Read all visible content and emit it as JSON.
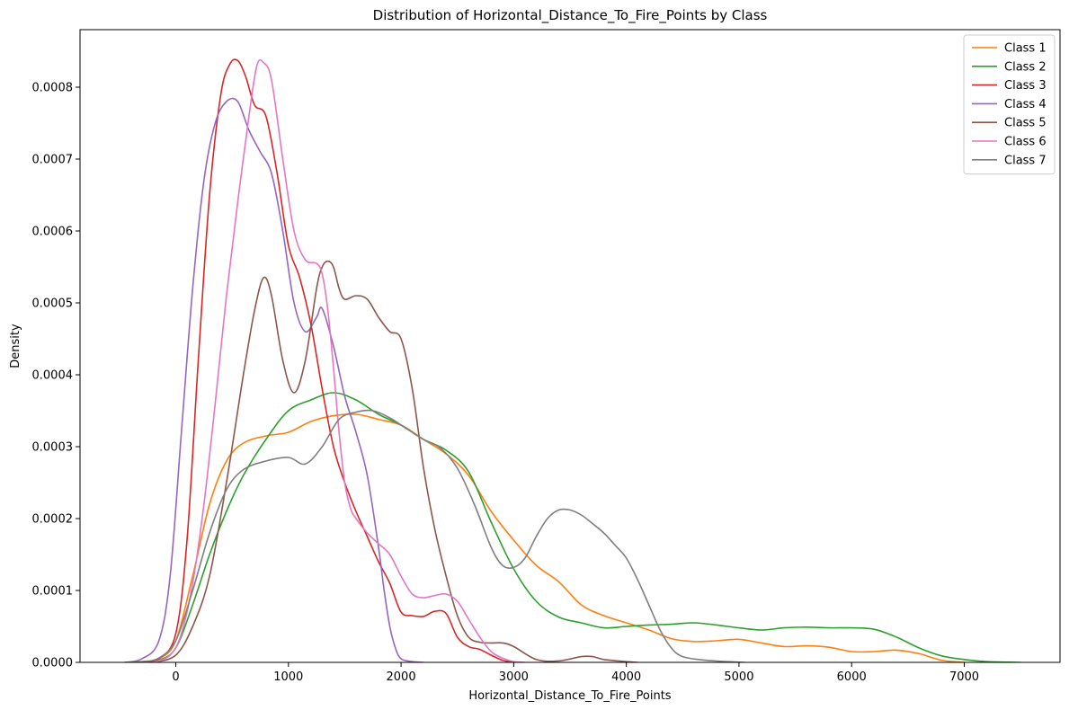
{
  "chart_data": {
    "type": "line",
    "title": "Distribution of Horizontal_Distance_To_Fire_Points by Class",
    "xlabel": "Horizontal_Distance_To_Fire_Points",
    "ylabel": "Density",
    "xlim": [
      -850,
      7850
    ],
    "ylim": [
      0,
      0.00088
    ],
    "xticks": [
      0,
      1000,
      2000,
      3000,
      4000,
      5000,
      6000,
      7000
    ],
    "xtick_labels": [
      "0",
      "1000",
      "2000",
      "3000",
      "4000",
      "5000",
      "6000",
      "7000"
    ],
    "yticks": [
      0,
      0.0001,
      0.0002,
      0.0003,
      0.0004,
      0.0005,
      0.0006,
      0.0007,
      0.0008
    ],
    "ytick_labels": [
      "0.0000",
      "0.0001",
      "0.0002",
      "0.0003",
      "0.0004",
      "0.0005",
      "0.0006",
      "0.0007",
      "0.0008"
    ],
    "grid": false,
    "legend_position": "top-right",
    "series": [
      {
        "name": "Class 1",
        "color": "#ff7f0e",
        "x": [
          -450,
          -300,
          -150,
          0,
          150,
          300,
          450,
          600,
          800,
          1000,
          1200,
          1400,
          1600,
          1800,
          2000,
          2200,
          2400,
          2600,
          2800,
          3000,
          3200,
          3400,
          3600,
          3800,
          4000,
          4200,
          4400,
          4600,
          4800,
          5000,
          5200,
          5400,
          5600,
          5800,
          6000,
          6200,
          6400,
          6600,
          6800,
          7000
        ],
        "y": [
          0,
          1e-06,
          5e-06,
          3e-05,
          0.00012,
          0.00022,
          0.00028,
          0.000305,
          0.000315,
          0.00032,
          0.000335,
          0.000343,
          0.000345,
          0.000338,
          0.00033,
          0.00031,
          0.00029,
          0.00026,
          0.00021,
          0.00017,
          0.000135,
          0.000112,
          8e-05,
          6.5e-05,
          5.5e-05,
          4.5e-05,
          3.3e-05,
          2.9e-05,
          3e-05,
          3.2e-05,
          2.7e-05,
          2.2e-05,
          2.3e-05,
          2.1e-05,
          1.5e-05,
          1.5e-05,
          1.7e-05,
          1.2e-05,
          3e-06,
          0
        ]
      },
      {
        "name": "Class 2",
        "color": "#2ca02c",
        "x": [
          -300,
          -150,
          0,
          150,
          300,
          450,
          600,
          800,
          1000,
          1200,
          1400,
          1600,
          1800,
          2000,
          2200,
          2400,
          2600,
          2800,
          3000,
          3200,
          3400,
          3600,
          3800,
          4000,
          4200,
          4400,
          4600,
          4800,
          5000,
          5200,
          5400,
          5600,
          5800,
          6000,
          6200,
          6400,
          6600,
          6800,
          7000,
          7200,
          7500
        ],
        "y": [
          0,
          3e-06,
          2e-05,
          8e-05,
          0.00015,
          0.00021,
          0.00026,
          0.00031,
          0.00035,
          0.000365,
          0.000375,
          0.000365,
          0.000345,
          0.00033,
          0.00031,
          0.000295,
          0.000265,
          0.000195,
          0.00013,
          8.5e-05,
          6.3e-05,
          5.5e-05,
          4.8e-05,
          5e-05,
          5.2e-05,
          5.3e-05,
          5.5e-05,
          5.2e-05,
          4.8e-05,
          4.5e-05,
          4.8e-05,
          4.9e-05,
          4.8e-05,
          4.8e-05,
          4.6e-05,
          3.5e-05,
          2e-05,
          9e-06,
          4e-06,
          1e-06,
          0
        ]
      },
      {
        "name": "Class 3",
        "color": "#d62728",
        "x": [
          -300,
          -150,
          0,
          100,
          200,
          300,
          400,
          480,
          550,
          620,
          700,
          800,
          900,
          1000,
          1100,
          1200,
          1300,
          1400,
          1500,
          1600,
          1700,
          1800,
          1900,
          2000,
          2100,
          2200,
          2300,
          2400,
          2500,
          2600,
          2700,
          2800,
          2900,
          3000
        ],
        "y": [
          0,
          5e-06,
          4e-05,
          0.00017,
          0.00042,
          0.00065,
          0.00079,
          0.000832,
          0.000837,
          0.000815,
          0.000775,
          0.00076,
          0.00068,
          0.00058,
          0.000535,
          0.00047,
          0.00038,
          0.0003,
          0.00025,
          0.00021,
          0.000175,
          0.00014,
          0.00011,
          7e-05,
          6.5e-05,
          6.4e-05,
          7.1e-05,
          6.8e-05,
          3.5e-05,
          2.2e-05,
          1.8e-05,
          1e-05,
          3e-06,
          0
        ]
      },
      {
        "name": "Class 4",
        "color": "#9467bd",
        "x": [
          -450,
          -300,
          -150,
          -50,
          50,
          150,
          250,
          350,
          450,
          550,
          650,
          750,
          850,
          950,
          1050,
          1150,
          1250,
          1300,
          1400,
          1500,
          1600,
          1700,
          1800,
          1850,
          1900,
          1950,
          2000,
          2100,
          2200
        ],
        "y": [
          0,
          5e-06,
          3e-05,
          0.00012,
          0.00032,
          0.00052,
          0.00067,
          0.00075,
          0.00078,
          0.00078,
          0.00074,
          0.00071,
          0.00068,
          0.0006,
          0.0005,
          0.00046,
          0.00048,
          0.000492,
          0.00044,
          0.00037,
          0.00032,
          0.00026,
          0.00016,
          0.0001,
          5e-05,
          2e-05,
          5e-06,
          1e-06,
          0
        ]
      },
      {
        "name": "Class 5",
        "color": "#8c564b",
        "x": [
          -200,
          0,
          150,
          300,
          450,
          600,
          700,
          780,
          850,
          950,
          1050,
          1150,
          1250,
          1300,
          1350,
          1400,
          1450,
          1500,
          1600,
          1700,
          1800,
          1900,
          2000,
          2100,
          2200,
          2300,
          2400,
          2500,
          2600,
          2700,
          2800,
          2900,
          3000,
          3200,
          3400,
          3600,
          3700,
          3800,
          4000,
          4100
        ],
        "y": [
          0,
          1e-05,
          5e-05,
          0.00012,
          0.00025,
          0.0004,
          0.00049,
          0.000535,
          0.00051,
          0.00042,
          0.000375,
          0.00042,
          0.00052,
          0.00055,
          0.000558,
          0.00055,
          0.00052,
          0.000505,
          0.00051,
          0.000505,
          0.00048,
          0.00046,
          0.00045,
          0.00038,
          0.00027,
          0.000185,
          0.00012,
          6.5e-05,
          3.5e-05,
          2.8e-05,
          2.7e-05,
          2.7e-05,
          2.2e-05,
          4e-06,
          2e-06,
          8e-06,
          8e-06,
          4e-06,
          1e-06,
          0
        ]
      },
      {
        "name": "Class 6",
        "color": "#e377c2",
        "x": [
          -200,
          -50,
          50,
          150,
          250,
          350,
          450,
          550,
          650,
          720,
          780,
          850,
          950,
          1050,
          1150,
          1250,
          1300,
          1350,
          1400,
          1450,
          1500,
          1550,
          1600,
          1700,
          1800,
          1900,
          2000,
          2100,
          2200,
          2300,
          2400,
          2500,
          2600,
          2700,
          2800,
          2900,
          3000,
          3100
        ],
        "y": [
          0,
          1e-05,
          4e-05,
          0.00011,
          0.00022,
          0.00036,
          0.00051,
          0.00064,
          0.00076,
          0.00083,
          0.000834,
          0.00081,
          0.0007,
          0.0006,
          0.00056,
          0.000555,
          0.00054,
          0.00049,
          0.00041,
          0.00032,
          0.00025,
          0.000215,
          0.0002,
          0.00018,
          0.000165,
          0.00015,
          0.00012,
          9.5e-05,
          9e-05,
          9.3e-05,
          9.5e-05,
          8.5e-05,
          6e-05,
          3.5e-05,
          1.5e-05,
          6e-06,
          1e-06,
          0
        ]
      },
      {
        "name": "Class 7",
        "color": "#7f7f7f",
        "x": [
          -450,
          -300,
          -150,
          0,
          150,
          300,
          450,
          600,
          800,
          1000,
          1150,
          1300,
          1450,
          1600,
          1750,
          1900,
          2050,
          2200,
          2350,
          2500,
          2650,
          2800,
          2900,
          3000,
          3100,
          3200,
          3300,
          3400,
          3500,
          3600,
          3700,
          3800,
          3900,
          4000,
          4100,
          4200,
          4300,
          4400,
          4500,
          4700,
          4900,
          5050
        ],
        "y": [
          0,
          1e-06,
          6e-06,
          3e-05,
          0.0001,
          0.00018,
          0.00024,
          0.000268,
          0.00028,
          0.000285,
          0.000276,
          0.0003,
          0.000338,
          0.000348,
          0.00035,
          0.00034,
          0.000325,
          0.00031,
          0.000298,
          0.00027,
          0.00022,
          0.00016,
          0.000135,
          0.000132,
          0.000145,
          0.000175,
          0.0002,
          0.000212,
          0.000212,
          0.000205,
          0.000193,
          0.00018,
          0.000163,
          0.000145,
          0.000115,
          8e-05,
          4.5e-05,
          2e-05,
          8e-06,
          3e-06,
          1e-06,
          0
        ]
      }
    ]
  }
}
